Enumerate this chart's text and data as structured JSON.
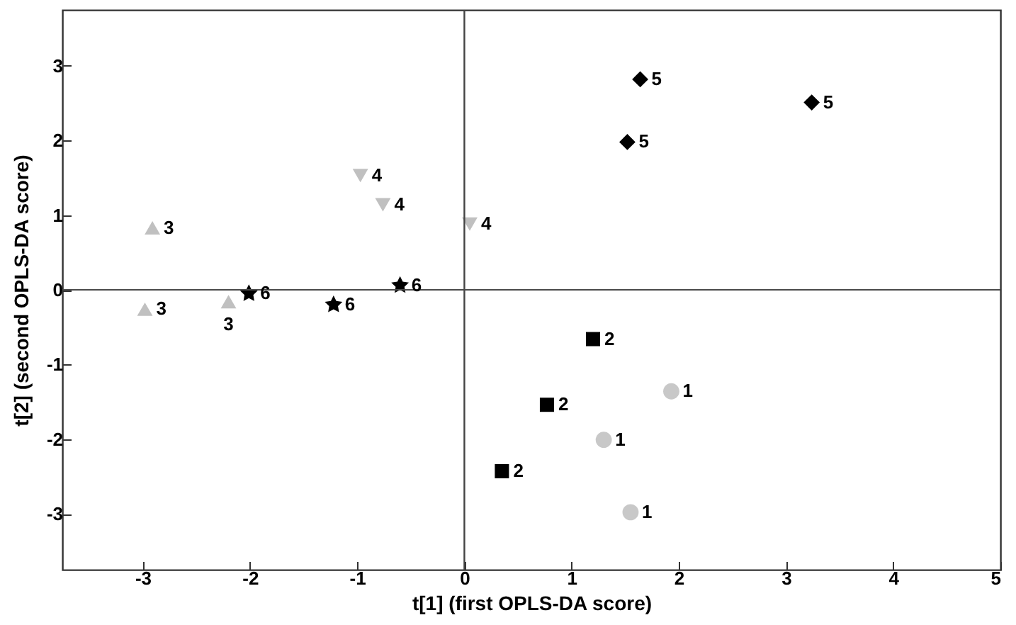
{
  "chart_data": {
    "type": "scatter",
    "xlabel": "t[1] (first OPLS-DA score)",
    "ylabel": "t[2] (second OPLS-DA score)",
    "xlim": [
      -3.75,
      5
    ],
    "xticks": [
      -3,
      -2,
      -1,
      0,
      1,
      2,
      3,
      4,
      5
    ],
    "ylim": [
      -3.75,
      3.75
    ],
    "yticks": [
      -3,
      -2,
      -1,
      0,
      1,
      2,
      3
    ],
    "series": [
      {
        "name": "1",
        "color": "#c8c8c8",
        "marker": "circle",
        "x": [
          1.93,
          1.3,
          1.55
        ],
        "values": [
          -1.36,
          -2.01,
          -2.98
        ]
      },
      {
        "name": "2",
        "color": "#000000",
        "marker": "square",
        "x": [
          1.2,
          0.77,
          0.35
        ],
        "values": [
          -0.66,
          -1.54,
          -2.43
        ]
      },
      {
        "name": "3",
        "color": "#c0c0c0",
        "marker": "triangle",
        "x": [
          -2.91,
          -2.98,
          -2.2
        ],
        "values": [
          0.83,
          -0.26,
          -0.16
        ]
      },
      {
        "name": "4",
        "color": "#c0c0c0",
        "marker": "triangle-down",
        "x": [
          -0.97,
          -0.76,
          0.05
        ],
        "values": [
          1.53,
          1.14,
          0.88
        ]
      },
      {
        "name": "5",
        "color": "#000000",
        "marker": "diamond",
        "x": [
          1.64,
          1.52,
          3.24
        ],
        "values": [
          2.82,
          1.98,
          2.51
        ]
      },
      {
        "name": "6",
        "color": "#000000",
        "marker": "star",
        "x": [
          -2.01,
          -1.22,
          -0.6
        ],
        "values": [
          -0.05,
          -0.2,
          0.06
        ]
      }
    ],
    "ref_lines": [
      {
        "axis": "x",
        "value": 0
      },
      {
        "axis": "y",
        "value": 0
      }
    ]
  }
}
